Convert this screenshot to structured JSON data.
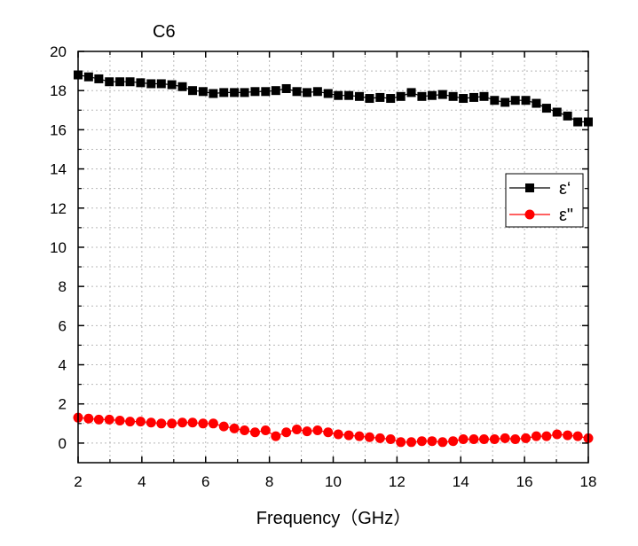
{
  "chart_data": {
    "type": "line",
    "title": "C6",
    "xlabel": "Frequency（GHz）",
    "ylabel": "",
    "xlim": [
      2,
      18
    ],
    "ylim": [
      -1,
      20
    ],
    "xticks": [
      2,
      4,
      6,
      8,
      10,
      12,
      14,
      16,
      18
    ],
    "yticks": [
      0,
      2,
      4,
      6,
      8,
      10,
      12,
      14,
      16,
      18,
      20
    ],
    "grid": true,
    "legend_position": "right",
    "series": [
      {
        "name": "ε‘",
        "marker": "square",
        "color": "#000000",
        "x": [
          2.0,
          2.33,
          2.65,
          2.98,
          3.31,
          3.63,
          3.96,
          4.29,
          4.61,
          4.94,
          5.27,
          5.59,
          5.92,
          6.24,
          6.57,
          6.9,
          7.22,
          7.55,
          7.88,
          8.2,
          8.53,
          8.86,
          9.18,
          9.51,
          9.84,
          10.16,
          10.49,
          10.82,
          11.14,
          11.47,
          11.8,
          12.12,
          12.45,
          12.78,
          13.1,
          13.43,
          13.76,
          14.08,
          14.41,
          14.73,
          15.06,
          15.39,
          15.71,
          16.04,
          16.37,
          16.69,
          17.02,
          17.35,
          17.67,
          18.0
        ],
        "y": [
          18.8,
          18.7,
          18.6,
          18.45,
          18.45,
          18.45,
          18.4,
          18.35,
          18.35,
          18.3,
          18.2,
          18.0,
          17.95,
          17.85,
          17.9,
          17.9,
          17.9,
          17.95,
          17.95,
          18.0,
          18.1,
          17.95,
          17.9,
          17.95,
          17.85,
          17.75,
          17.75,
          17.7,
          17.6,
          17.65,
          17.6,
          17.7,
          17.9,
          17.7,
          17.75,
          17.8,
          17.7,
          17.6,
          17.65,
          17.7,
          17.5,
          17.4,
          17.5,
          17.5,
          17.35,
          17.1,
          16.9,
          16.7,
          16.4,
          16.4
        ]
      },
      {
        "name": "ε\"",
        "marker": "circle",
        "color": "#ff0000",
        "x": [
          2.0,
          2.33,
          2.65,
          2.98,
          3.31,
          3.63,
          3.96,
          4.29,
          4.61,
          4.94,
          5.27,
          5.59,
          5.92,
          6.24,
          6.57,
          6.9,
          7.22,
          7.55,
          7.88,
          8.2,
          8.53,
          8.86,
          9.18,
          9.51,
          9.84,
          10.16,
          10.49,
          10.82,
          11.14,
          11.47,
          11.8,
          12.12,
          12.45,
          12.78,
          13.1,
          13.43,
          13.76,
          14.08,
          14.41,
          14.73,
          15.06,
          15.39,
          15.71,
          16.04,
          16.37,
          16.69,
          17.02,
          17.35,
          17.67,
          18.0
        ],
        "y": [
          1.3,
          1.25,
          1.2,
          1.2,
          1.15,
          1.1,
          1.1,
          1.05,
          1.0,
          1.0,
          1.05,
          1.05,
          1.0,
          1.0,
          0.85,
          0.75,
          0.65,
          0.55,
          0.65,
          0.35,
          0.55,
          0.7,
          0.6,
          0.65,
          0.55,
          0.45,
          0.4,
          0.35,
          0.3,
          0.25,
          0.2,
          0.05,
          0.05,
          0.1,
          0.1,
          0.05,
          0.1,
          0.2,
          0.2,
          0.2,
          0.2,
          0.25,
          0.2,
          0.25,
          0.35,
          0.35,
          0.45,
          0.4,
          0.35,
          0.25
        ]
      }
    ]
  }
}
